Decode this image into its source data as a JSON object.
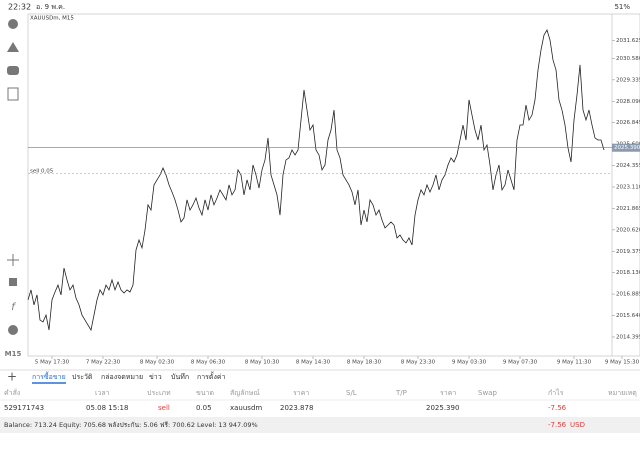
{
  "status_bar": {
    "time": "22:32",
    "date": "อ. 9 พ.ค.",
    "battery": "51%"
  },
  "sidebar": {
    "timeframe": "M15"
  },
  "chart": {
    "type": "line",
    "title": "XAUUSDm, M15",
    "color": "#222222",
    "values": [
      2016.55,
      2017.13,
      2016.26,
      2016.84,
      2015.38,
      2015.27,
      2015.67,
      2014.8,
      2016.55,
      2017.01,
      2017.41,
      2016.84,
      2018.4,
      2017.71,
      2017.13,
      2017.41,
      2016.66,
      2016.26,
      2015.67,
      2015.38,
      2015.09,
      2014.8,
      2015.67,
      2016.55,
      2017.13,
      2016.84,
      2017.41,
      2017.13,
      2017.71,
      2017.13,
      2017.59,
      2017.13,
      2016.95,
      2017.13,
      2017.01,
      2017.41,
      2019.45,
      2020.03,
      2019.57,
      2020.61,
      2022.07,
      2021.77,
      2023.23,
      2023.52,
      2023.81,
      2024.21,
      2023.81,
      2023.23,
      2022.82,
      2022.36,
      2021.77,
      2021.08,
      2021.31,
      2022.36,
      2021.77,
      2022.07,
      2022.47,
      2021.89,
      2021.48,
      2022.36,
      2021.77,
      2022.65,
      2022.07,
      2022.47,
      2022.94,
      2022.65,
      2022.36,
      2023.23,
      2022.65,
      2022.94,
      2024.1,
      2023.81,
      2022.65,
      2023.52,
      2022.94,
      2024.39,
      2023.81,
      2023.05,
      2024.1,
      2024.68,
      2025.96,
      2023.81,
      2023.23,
      2022.65,
      2021.48,
      2023.81,
      2024.68,
      2024.8,
      2025.26,
      2024.97,
      2025.26,
      2027.0,
      2028.75,
      2027.58,
      2026.42,
      2026.71,
      2025.26,
      2024.97,
      2024.1,
      2024.39,
      2025.84,
      2026.42,
      2027.58,
      2025.26,
      2024.8,
      2023.81,
      2023.52,
      2023.23,
      2022.82,
      2022.07,
      2022.94,
      2020.9,
      2021.77,
      2021.08,
      2022.36,
      2022.07,
      2021.48,
      2021.77,
      2021.19,
      2020.73,
      2020.9,
      2021.08,
      2020.9,
      2020.15,
      2020.32,
      2020.03,
      2019.86,
      2020.15,
      2019.74,
      2021.48,
      2022.36,
      2022.94,
      2022.65,
      2023.23,
      2022.82,
      2023.23,
      2023.81,
      2022.94,
      2023.52,
      2023.81,
      2024.39,
      2024.8,
      2024.56,
      2024.97,
      2025.84,
      2026.71,
      2025.84,
      2028.17,
      2027.29,
      2026.42,
      2025.84,
      2026.71,
      2025.26,
      2025.55,
      2024.39,
      2022.94,
      2023.81,
      2024.39,
      2022.94,
      2023.23,
      2024.1,
      2023.52,
      2022.94,
      2025.84,
      2026.71,
      2026.71,
      2027.87,
      2027.0,
      2027.29,
      2028.17,
      2029.91,
      2031.07,
      2031.94,
      2032.23,
      2031.65,
      2030.49,
      2029.91,
      2028.17,
      2027.58,
      2026.71,
      2025.38,
      2024.56,
      2027.0,
      2028.46,
      2030.2,
      2027.58,
      2027.0,
      2027.58,
      2026.71,
      2025.96,
      2025.84,
      2025.84,
      2025.26
    ],
    "xlim": [
      0,
      198
    ],
    "xticks": [
      {
        "value": 8,
        "label": "5 May 17:30"
      },
      {
        "value": 25,
        "label": "7 May 22:30"
      },
      {
        "value": 43,
        "label": "8 May 02:30"
      },
      {
        "value": 60,
        "label": "8 May 06:30"
      },
      {
        "value": 78,
        "label": "8 May 10:30"
      },
      {
        "value": 95,
        "label": "8 May 14:30"
      },
      {
        "value": 112,
        "label": "8 May 18:30"
      },
      {
        "value": 130,
        "label": "8 May 23:30"
      },
      {
        "value": 147,
        "label": "9 May 03:30"
      },
      {
        "value": 164,
        "label": "9 May 07:30"
      },
      {
        "value": 182,
        "label": "9 May 11:30"
      },
      {
        "value": 198,
        "label": "9 May 15:30"
      }
    ],
    "ylim": [
      2013.29,
      2033.16
    ],
    "yticks": [
      2031.625,
      {
        "value": 2030.58,
        "label": "2030.580"
      },
      2029.335,
      {
        "value": 2028.09,
        "label": "2028.090"
      },
      2026.845,
      {
        "value": 2025.6,
        "label": "2025.600"
      },
      2024.355,
      {
        "value": 2023.11,
        "label": "2023.110"
      },
      2021.865,
      {
        "value": 2020.62,
        "label": "2020.620"
      },
      2019.375,
      {
        "value": 2018.13,
        "label": "2018.130"
      },
      2016.885,
      {
        "value": 2015.64,
        "label": "2015.640"
      },
      2014.395
    ],
    "current_price": {
      "value": 2025.39,
      "label": "2025.390"
    },
    "order_line": {
      "value": 2023.878,
      "label": "sell 0.05"
    }
  },
  "tabs": [
    "การซื้อขาย",
    "ประวัติ",
    "กล่องจดหมาย",
    "ข่าว",
    "บันทึก",
    "การตั้งค่า"
  ],
  "table": {
    "headers": [
      "คำสั่ง",
      "เวลา",
      "ประเภท",
      "ขนาด",
      "สัญลักษณ์",
      "ราคา",
      "S/L",
      "T/P",
      "ราคา",
      "Swap",
      "กำไร",
      "หมายเหตุ"
    ],
    "row": {
      "order": "529171743",
      "time": "05.08 15:18",
      "type": "sell",
      "volume": "0.05",
      "symbol": "xauusdm",
      "open_price": "2023.878",
      "current_price": "2025.390",
      "profit": "-7.56"
    }
  },
  "footer": {
    "summary": "Balance: 713.24 Equity: 705.68 พลังประกัน: 5.06 ฟรี: 700.62 Level: 13 947.09%",
    "profit": "-7.56",
    "currency": "USD"
  }
}
